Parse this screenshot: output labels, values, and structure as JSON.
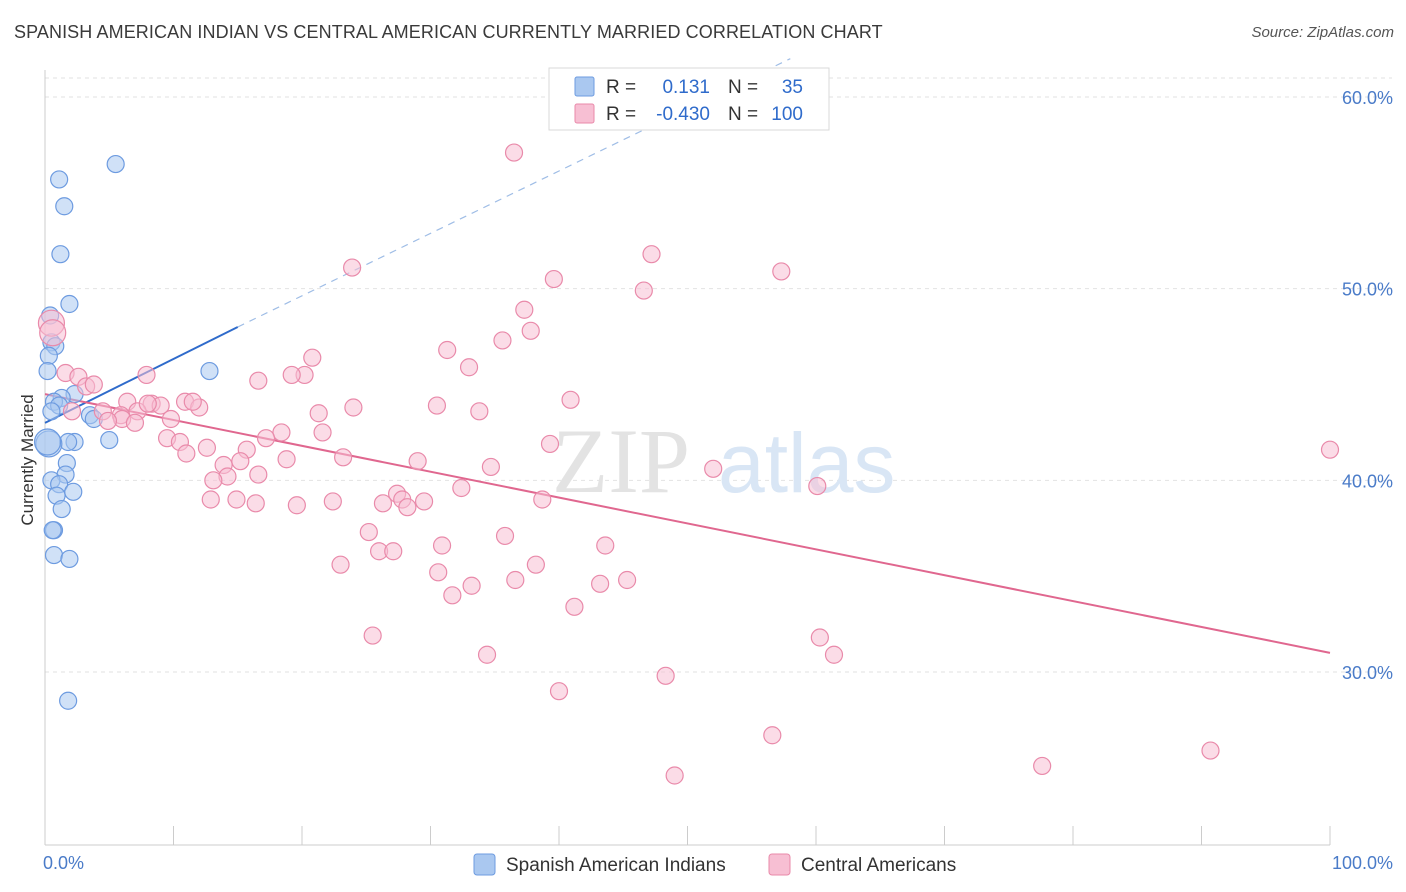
{
  "header": {
    "title": "SPANISH AMERICAN INDIAN VS CENTRAL AMERICAN CURRENTLY MARRIED CORRELATION CHART",
    "source": "Source: ZipAtlas.com"
  },
  "watermark": {
    "zip": "ZIP",
    "atlas": "atlas"
  },
  "legend": {
    "r_label": "R =",
    "n_label": "N =",
    "rows": [
      {
        "r": "0.131",
        "n": "35"
      },
      {
        "r": "-0.430",
        "n": "100"
      }
    ]
  },
  "chart_data": {
    "type": "scatter",
    "title": "SPANISH AMERICAN INDIAN VS CENTRAL AMERICAN CURRENTLY MARRIED CORRELATION CHART",
    "ylabel": "Currently Married",
    "xlim": [
      0,
      100
    ],
    "ylim": [
      20,
      62
    ],
    "x_tick_labels": [
      "0.0%",
      "100.0%"
    ],
    "y_ticks": [
      30,
      40,
      50,
      60
    ],
    "y_tick_labels": [
      "30.0%",
      "40.0%",
      "50.0%",
      "60.0%"
    ],
    "grid": true,
    "legend_placement": "top-center",
    "colors": {
      "blue_fill": "#aac8f0",
      "blue_stroke": "#6d9be0",
      "blue_line": "#2f6bcb",
      "pink_fill": "#f7bfd3",
      "pink_stroke": "#e98aaa",
      "pink_line": "#e0678f"
    },
    "series": [
      {
        "name": "Spanish American Indians",
        "color": "#aac8f0",
        "trend": {
          "x": [
            0,
            15
          ],
          "y": [
            43.0,
            48.0
          ],
          "dashed_to": [
            58,
            62
          ]
        },
        "points": [
          {
            "x": 5.5,
            "y": 56.5
          },
          {
            "x": 1.1,
            "y": 55.7
          },
          {
            "x": 1.5,
            "y": 54.3
          },
          {
            "x": 1.2,
            "y": 51.8
          },
          {
            "x": 1.9,
            "y": 49.2
          },
          {
            "x": 0.4,
            "y": 48.6
          },
          {
            "x": 0.5,
            "y": 47.2
          },
          {
            "x": 0.8,
            "y": 47.0
          },
          {
            "x": 0.3,
            "y": 46.5
          },
          {
            "x": 12.8,
            "y": 45.7
          },
          {
            "x": 0.2,
            "y": 45.7
          },
          {
            "x": 2.3,
            "y": 44.5
          },
          {
            "x": 1.3,
            "y": 44.3
          },
          {
            "x": 0.7,
            "y": 44.1
          },
          {
            "x": 1.1,
            "y": 43.9
          },
          {
            "x": 0.5,
            "y": 43.6
          },
          {
            "x": 3.5,
            "y": 43.4
          },
          {
            "x": 3.8,
            "y": 43.2
          },
          {
            "x": 2.3,
            "y": 42.0
          },
          {
            "x": 1.8,
            "y": 42.0
          },
          {
            "x": 5.0,
            "y": 42.1
          },
          {
            "x": 0.3,
            "y": 41.9
          },
          {
            "x": 1.7,
            "y": 40.9
          },
          {
            "x": 1.6,
            "y": 40.3
          },
          {
            "x": 0.5,
            "y": 40.0
          },
          {
            "x": 1.1,
            "y": 39.8
          },
          {
            "x": 2.2,
            "y": 39.4
          },
          {
            "x": 0.9,
            "y": 39.2
          },
          {
            "x": 1.3,
            "y": 38.5
          },
          {
            "x": 0.7,
            "y": 37.4
          },
          {
            "x": 0.6,
            "y": 37.4
          },
          {
            "x": 0.7,
            "y": 36.1
          },
          {
            "x": 1.9,
            "y": 35.9
          },
          {
            "x": 1.8,
            "y": 28.5
          },
          {
            "x": 0.2,
            "y": 42.0
          }
        ]
      },
      {
        "name": "Central Americans",
        "color": "#f7bfd3",
        "trend": {
          "x": [
            0,
            100
          ],
          "y": [
            44.5,
            31.0
          ]
        },
        "points": [
          {
            "x": 36.5,
            "y": 57.1
          },
          {
            "x": 47.2,
            "y": 51.8
          },
          {
            "x": 23.9,
            "y": 51.1
          },
          {
            "x": 57.3,
            "y": 50.9
          },
          {
            "x": 39.6,
            "y": 50.5
          },
          {
            "x": 46.6,
            "y": 49.9
          },
          {
            "x": 37.3,
            "y": 48.9
          },
          {
            "x": 0.5,
            "y": 48.2
          },
          {
            "x": 0.6,
            "y": 47.7
          },
          {
            "x": 37.8,
            "y": 47.8
          },
          {
            "x": 35.6,
            "y": 47.3
          },
          {
            "x": 31.3,
            "y": 46.8
          },
          {
            "x": 20.8,
            "y": 46.4
          },
          {
            "x": 33.0,
            "y": 45.9
          },
          {
            "x": 1.6,
            "y": 45.6
          },
          {
            "x": 7.9,
            "y": 45.5
          },
          {
            "x": 20.2,
            "y": 45.5
          },
          {
            "x": 19.2,
            "y": 45.5
          },
          {
            "x": 16.6,
            "y": 45.2
          },
          {
            "x": 2.6,
            "y": 45.4
          },
          {
            "x": 3.2,
            "y": 44.9
          },
          {
            "x": 40.9,
            "y": 44.2
          },
          {
            "x": 10.9,
            "y": 44.1
          },
          {
            "x": 6.4,
            "y": 44.1
          },
          {
            "x": 8.3,
            "y": 44.0
          },
          {
            "x": 9.0,
            "y": 43.9
          },
          {
            "x": 30.5,
            "y": 43.9
          },
          {
            "x": 24.0,
            "y": 43.8
          },
          {
            "x": 12.0,
            "y": 43.8
          },
          {
            "x": 4.5,
            "y": 43.6
          },
          {
            "x": 7.2,
            "y": 43.6
          },
          {
            "x": 2.1,
            "y": 43.6
          },
          {
            "x": 33.8,
            "y": 43.6
          },
          {
            "x": 21.3,
            "y": 43.5
          },
          {
            "x": 5.9,
            "y": 43.4
          },
          {
            "x": 6.0,
            "y": 43.2
          },
          {
            "x": 9.8,
            "y": 43.2
          },
          {
            "x": 4.9,
            "y": 43.1
          },
          {
            "x": 7.0,
            "y": 43.0
          },
          {
            "x": 18.4,
            "y": 42.5
          },
          {
            "x": 21.6,
            "y": 42.5
          },
          {
            "x": 17.2,
            "y": 42.2
          },
          {
            "x": 9.5,
            "y": 42.2
          },
          {
            "x": 10.5,
            "y": 42.0
          },
          {
            "x": 12.6,
            "y": 41.7
          },
          {
            "x": 15.7,
            "y": 41.6
          },
          {
            "x": 39.3,
            "y": 41.9
          },
          {
            "x": 11.0,
            "y": 41.4
          },
          {
            "x": 23.2,
            "y": 41.2
          },
          {
            "x": 18.8,
            "y": 41.1
          },
          {
            "x": 29.0,
            "y": 41.0
          },
          {
            "x": 15.2,
            "y": 41.0
          },
          {
            "x": 34.7,
            "y": 40.7
          },
          {
            "x": 13.9,
            "y": 40.8
          },
          {
            "x": 52.0,
            "y": 40.6
          },
          {
            "x": 16.6,
            "y": 40.3
          },
          {
            "x": 14.2,
            "y": 40.2
          },
          {
            "x": 13.1,
            "y": 40.0
          },
          {
            "x": 60.1,
            "y": 39.7
          },
          {
            "x": 32.4,
            "y": 39.6
          },
          {
            "x": 27.4,
            "y": 39.3
          },
          {
            "x": 27.8,
            "y": 39.0
          },
          {
            "x": 12.9,
            "y": 39.0
          },
          {
            "x": 14.9,
            "y": 39.0
          },
          {
            "x": 29.5,
            "y": 38.9
          },
          {
            "x": 22.4,
            "y": 38.9
          },
          {
            "x": 16.4,
            "y": 38.8
          },
          {
            "x": 26.3,
            "y": 38.8
          },
          {
            "x": 19.6,
            "y": 38.7
          },
          {
            "x": 28.2,
            "y": 38.6
          },
          {
            "x": 38.7,
            "y": 39.0
          },
          {
            "x": 25.2,
            "y": 37.3
          },
          {
            "x": 35.8,
            "y": 37.1
          },
          {
            "x": 30.9,
            "y": 36.6
          },
          {
            "x": 43.6,
            "y": 36.6
          },
          {
            "x": 26.0,
            "y": 36.3
          },
          {
            "x": 27.1,
            "y": 36.3
          },
          {
            "x": 23.0,
            "y": 35.6
          },
          {
            "x": 38.2,
            "y": 35.6
          },
          {
            "x": 30.6,
            "y": 35.2
          },
          {
            "x": 36.6,
            "y": 34.8
          },
          {
            "x": 45.3,
            "y": 34.8
          },
          {
            "x": 43.2,
            "y": 34.6
          },
          {
            "x": 33.2,
            "y": 34.5
          },
          {
            "x": 31.7,
            "y": 34.0
          },
          {
            "x": 41.2,
            "y": 33.4
          },
          {
            "x": 25.5,
            "y": 31.9
          },
          {
            "x": 60.3,
            "y": 31.8
          },
          {
            "x": 61.4,
            "y": 30.9
          },
          {
            "x": 34.4,
            "y": 30.9
          },
          {
            "x": 48.3,
            "y": 29.8
          },
          {
            "x": 40.0,
            "y": 29.0
          },
          {
            "x": 56.6,
            "y": 26.7
          },
          {
            "x": 90.7,
            "y": 25.9
          },
          {
            "x": 77.6,
            "y": 25.1
          },
          {
            "x": 49.0,
            "y": 24.6
          },
          {
            "x": 100.0,
            "y": 41.6
          },
          {
            "x": 8.0,
            "y": 44.0
          },
          {
            "x": 11.5,
            "y": 44.1
          },
          {
            "x": 3.8,
            "y": 45.0
          }
        ]
      }
    ]
  }
}
